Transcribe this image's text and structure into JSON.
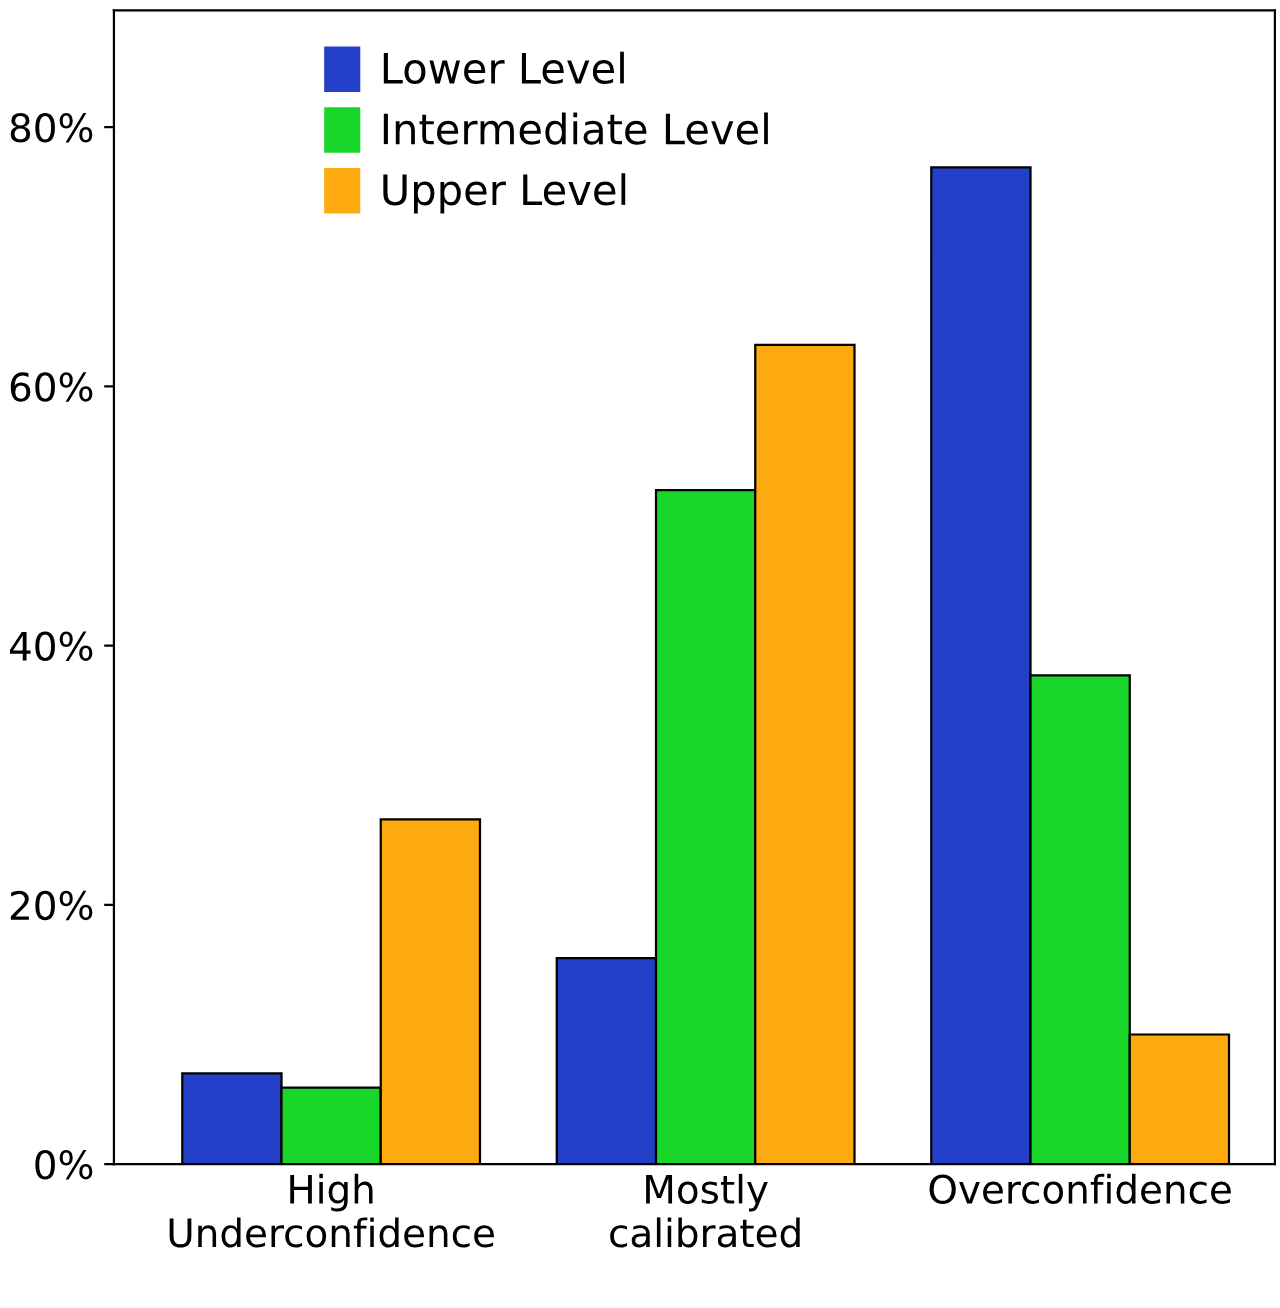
{
  "chart_data": {
    "type": "bar",
    "categories": [
      "High\nUnderconfidence",
      "Mostly\ncalibrated",
      "Overconfidence"
    ],
    "series": [
      {
        "name": "Lower Level",
        "color": "#2340c8",
        "values": [
          7,
          15.9,
          76.9
        ]
      },
      {
        "name": "Intermediate Level",
        "color": "#19d72a",
        "values": [
          5.9,
          52,
          37.7
        ]
      },
      {
        "name": "Upper Level",
        "color": "#fcaa0f",
        "values": [
          26.6,
          63.2,
          10
        ]
      }
    ],
    "ylim": [
      0,
      89
    ],
    "yticks": [
      {
        "value": 0,
        "label": "0%"
      },
      {
        "value": 20,
        "label": "20%"
      },
      {
        "value": 40,
        "label": "40%"
      },
      {
        "value": 60,
        "label": "60%"
      },
      {
        "value": 80,
        "label": "80%"
      }
    ],
    "grid": false,
    "legend": "top left"
  }
}
